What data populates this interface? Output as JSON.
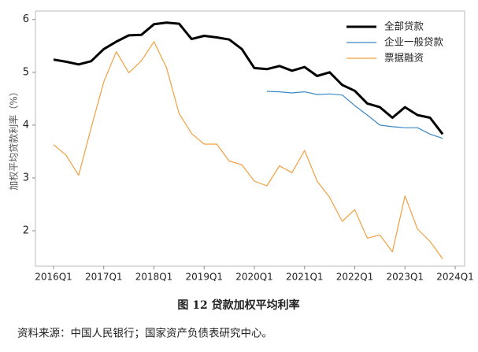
{
  "chart_data": {
    "type": "line",
    "ylabel": "加权平均贷款利率（%）",
    "caption": "图 12 贷款加权平均利率",
    "source": "资料来源：中国人民银行；国家资产负债表研究中心。",
    "categories": [
      "2016Q1",
      null,
      null,
      null,
      "2017Q1",
      null,
      null,
      null,
      "2018Q1",
      null,
      null,
      null,
      "2019Q1",
      null,
      null,
      null,
      "2020Q1",
      null,
      null,
      null,
      "2021Q1",
      null,
      null,
      null,
      "2022Q1",
      null,
      null,
      null,
      "2023Q1",
      null,
      null,
      null,
      "2024Q1"
    ],
    "series": [
      {
        "name": "全部贷款",
        "color": "#000000",
        "width": 3,
        "values": [
          5.24,
          5.2,
          5.15,
          5.21,
          5.44,
          5.58,
          5.7,
          5.71,
          5.91,
          5.94,
          5.92,
          5.63,
          5.69,
          5.66,
          5.62,
          5.44,
          5.08,
          5.06,
          5.12,
          5.03,
          5.1,
          4.93,
          5.0,
          4.76,
          4.65,
          4.41,
          4.34,
          4.14,
          4.34,
          4.19,
          4.14,
          3.83,
          null
        ]
      },
      {
        "name": "企业一般贷款",
        "color": "#3b88c4",
        "width": 1.2,
        "values": [
          null,
          null,
          null,
          null,
          null,
          null,
          null,
          null,
          null,
          null,
          null,
          null,
          null,
          null,
          null,
          null,
          null,
          4.64,
          4.63,
          4.61,
          4.63,
          4.58,
          4.59,
          4.57,
          4.37,
          4.19,
          4.0,
          3.97,
          3.95,
          3.95,
          3.83,
          3.75,
          null
        ]
      },
      {
        "name": "票据融资",
        "color": "#f2a040",
        "width": 1.2,
        "values": [
          3.63,
          3.43,
          3.05,
          3.95,
          4.82,
          5.39,
          4.99,
          5.22,
          5.58,
          5.09,
          4.22,
          3.84,
          3.64,
          3.64,
          3.32,
          3.25,
          2.94,
          2.85,
          3.23,
          3.1,
          3.52,
          2.94,
          2.63,
          2.18,
          2.4,
          1.86,
          1.92,
          1.6,
          2.66,
          2.03,
          1.8,
          1.47,
          null
        ]
      }
    ],
    "ylim": [
      1.33,
      6.16
    ],
    "yticks": [
      2,
      3,
      4,
      5,
      6
    ],
    "grid": false,
    "legend": "upper right"
  }
}
